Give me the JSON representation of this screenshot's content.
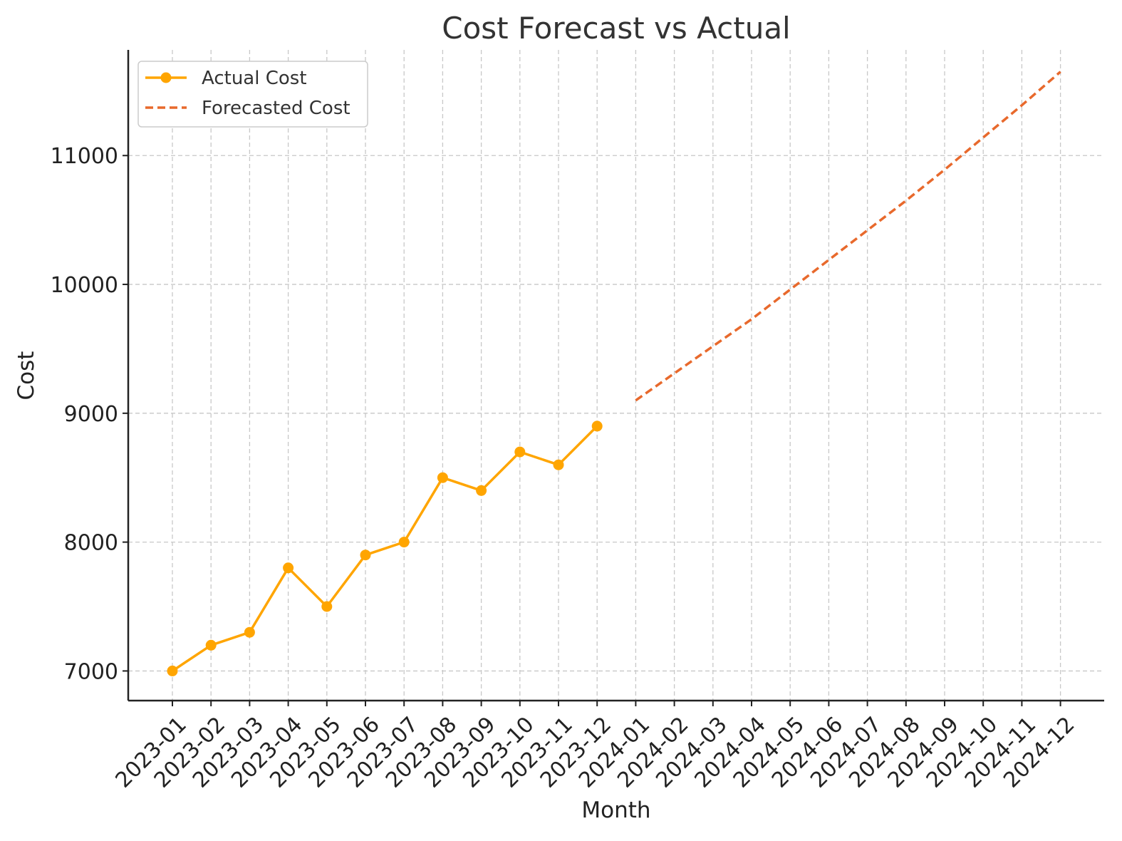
{
  "chart_data": {
    "type": "line",
    "title": "Cost Forecast vs Actual",
    "xlabel": "Month",
    "ylabel": "Cost",
    "categories": [
      "2023-01",
      "2023-02",
      "2023-03",
      "2023-04",
      "2023-05",
      "2023-06",
      "2023-07",
      "2023-08",
      "2023-09",
      "2023-10",
      "2023-11",
      "2023-12",
      "2024-01",
      "2024-02",
      "2024-03",
      "2024-04",
      "2024-05",
      "2024-06",
      "2024-07",
      "2024-08",
      "2024-09",
      "2024-10",
      "2024-11",
      "2024-12"
    ],
    "yticks": [
      7000,
      8000,
      9000,
      10000,
      11000
    ],
    "ylim": [
      6770,
      11820
    ],
    "grid": true,
    "legend_position": "top-left",
    "series": [
      {
        "name": "Actual Cost",
        "style": "solid-with-markers",
        "color": "#FFA500",
        "x": [
          "2023-01",
          "2023-02",
          "2023-03",
          "2023-04",
          "2023-05",
          "2023-06",
          "2023-07",
          "2023-08",
          "2023-09",
          "2023-10",
          "2023-11",
          "2023-12"
        ],
        "values": [
          7000,
          7200,
          7300,
          7800,
          7500,
          7900,
          8000,
          8500,
          8400,
          8700,
          8600,
          8900
        ]
      },
      {
        "name": "Forecasted Cost",
        "style": "dashed",
        "color": "#E8692C",
        "x": [
          "2024-01",
          "2024-02",
          "2024-03",
          "2024-04",
          "2024-05",
          "2024-06",
          "2024-07",
          "2024-08",
          "2024-09",
          "2024-10",
          "2024-11",
          "2024-12"
        ],
        "values": [
          9100,
          9310,
          9520,
          9730,
          9960,
          10190,
          10420,
          10650,
          10890,
          11140,
          11390,
          11650
        ]
      }
    ]
  }
}
